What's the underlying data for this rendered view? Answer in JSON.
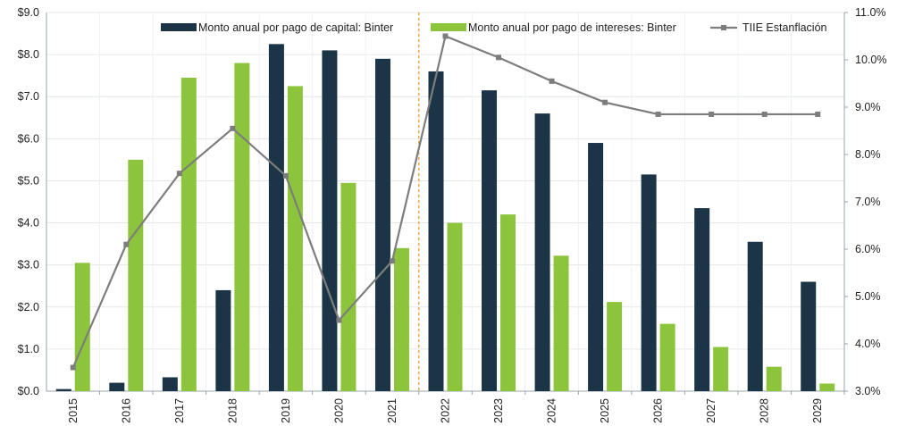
{
  "chart_data": {
    "type": "bar",
    "categories": [
      "2015",
      "2016",
      "2017",
      "2018",
      "2019",
      "2020",
      "2021",
      "2022",
      "2023",
      "2024",
      "2025",
      "2026",
      "2027",
      "2028",
      "2029"
    ],
    "series": [
      {
        "name": "Monto anual por pago de capital: Binter",
        "type": "bar",
        "axis": "left",
        "color": "#1b3446",
        "values": [
          0.05,
          0.2,
          0.33,
          2.4,
          8.25,
          8.1,
          7.9,
          7.6,
          7.15,
          6.6,
          5.9,
          5.15,
          4.35,
          3.55,
          2.6
        ]
      },
      {
        "name": "Monto anual por pago de intereses: Binter",
        "type": "bar",
        "axis": "left",
        "color": "#8cc43b",
        "values": [
          3.05,
          5.5,
          7.45,
          7.8,
          7.25,
          4.95,
          3.4,
          4.0,
          4.2,
          3.22,
          2.12,
          1.6,
          1.05,
          0.58,
          0.18
        ]
      },
      {
        "name": "TIIE Estanflación",
        "type": "line",
        "axis": "right",
        "color": "#7d7d7d",
        "values": [
          3.5,
          6.1,
          7.6,
          8.55,
          7.55,
          4.5,
          5.75,
          10.5,
          10.05,
          9.55,
          9.1,
          8.85,
          8.85,
          8.85,
          8.85
        ]
      }
    ],
    "y_left": {
      "min": 0,
      "max": 9,
      "ticks": [
        "$0.0",
        "$1.0",
        "$2.0",
        "$3.0",
        "$4.0",
        "$5.0",
        "$6.0",
        "$7.0",
        "$8.0",
        "$9.0"
      ]
    },
    "y_right": {
      "min": 3,
      "max": 11,
      "ticks": [
        "3.0%",
        "4.0%",
        "5.0%",
        "6.0%",
        "7.0%",
        "8.0%",
        "9.0%",
        "10.0%",
        "11.0%"
      ]
    },
    "divider_after_category": "2021",
    "divider_color": "#f2a54b",
    "legend_position": "top",
    "grid": true,
    "title": "",
    "xlabel": "",
    "ylabel": ""
  }
}
